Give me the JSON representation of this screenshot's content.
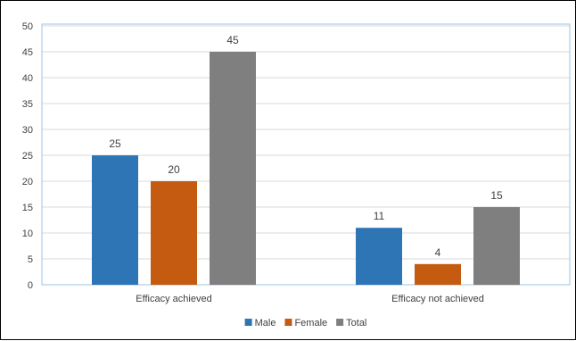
{
  "chart_data": {
    "type": "bar",
    "categories": [
      "Efficacy achieved",
      "Efficacy not achieved"
    ],
    "series": [
      {
        "name": "Male",
        "values": [
          25,
          11
        ],
        "color": "#2E75B6"
      },
      {
        "name": "Female",
        "values": [
          20,
          4
        ],
        "color": "#C55A11"
      },
      {
        "name": "Total",
        "values": [
          45,
          15
        ],
        "color": "#7F7F7F"
      }
    ],
    "ylim": [
      0,
      50
    ],
    "yticks": [
      0,
      5,
      10,
      15,
      20,
      25,
      30,
      35,
      40,
      45,
      50
    ],
    "grid": true,
    "gridline_color": "#D9D9D9",
    "plot_border_color": "#9DC3E6",
    "legend_position": "bottom",
    "data_labels": true
  }
}
